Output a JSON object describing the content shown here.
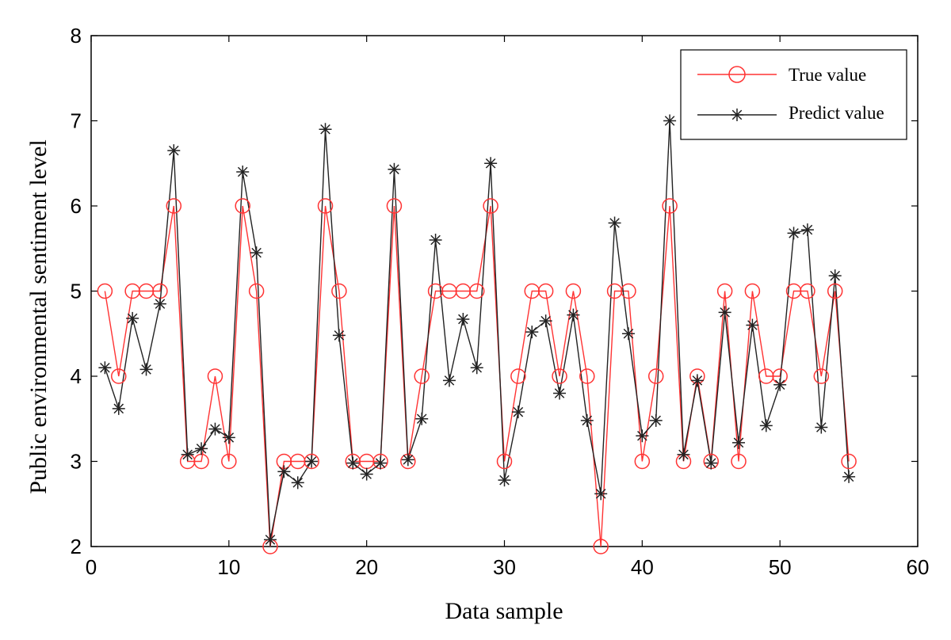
{
  "chart_data": {
    "type": "line",
    "title": "",
    "xlabel": "Data sample",
    "ylabel": "Public environmental sentiment level",
    "xlim": [
      0,
      60
    ],
    "ylim": [
      2,
      8
    ],
    "xticks": [
      0,
      10,
      20,
      30,
      40,
      50,
      60
    ],
    "yticks": [
      2,
      3,
      4,
      5,
      6,
      7,
      8
    ],
    "grid": false,
    "legend_position": "top-right",
    "x": [
      1,
      2,
      3,
      4,
      5,
      6,
      7,
      8,
      9,
      10,
      11,
      12,
      13,
      14,
      15,
      16,
      17,
      18,
      19,
      20,
      21,
      22,
      23,
      24,
      25,
      26,
      27,
      28,
      29,
      30,
      31,
      32,
      33,
      34,
      35,
      36,
      37,
      38,
      39,
      40,
      41,
      42,
      43,
      44,
      45,
      46,
      47,
      48,
      49,
      50,
      51,
      52,
      53,
      54,
      55
    ],
    "series": [
      {
        "name": "True value",
        "color": "#ff3333",
        "marker": "circle",
        "values": [
          5,
          4,
          5,
          5,
          5,
          6,
          3,
          3,
          4,
          3,
          6,
          5,
          2,
          3,
          3,
          3,
          6,
          5,
          3,
          3,
          3,
          6,
          3,
          4,
          5,
          5,
          5,
          5,
          6,
          3,
          4,
          5,
          5,
          4,
          5,
          4,
          2,
          5,
          5,
          3,
          4,
          6,
          3,
          4,
          3,
          5,
          3,
          5,
          4,
          4,
          5,
          5,
          4,
          5,
          3
        ]
      },
      {
        "name": "Predict value",
        "color": "#222222",
        "marker": "star",
        "values": [
          4.1,
          3.62,
          4.68,
          4.08,
          4.85,
          6.65,
          3.08,
          3.15,
          3.38,
          3.28,
          6.4,
          5.45,
          2.08,
          2.88,
          2.75,
          3.0,
          6.9,
          4.48,
          2.98,
          2.85,
          2.98,
          6.43,
          3.02,
          3.5,
          5.6,
          3.95,
          4.67,
          4.1,
          6.5,
          2.78,
          3.58,
          4.52,
          4.65,
          3.8,
          4.72,
          3.48,
          2.62,
          5.8,
          4.5,
          3.3,
          3.48,
          7.0,
          3.08,
          3.95,
          2.98,
          4.75,
          3.22,
          4.6,
          3.42,
          3.9,
          5.68,
          5.72,
          3.4,
          5.18,
          2.82
        ]
      }
    ]
  }
}
